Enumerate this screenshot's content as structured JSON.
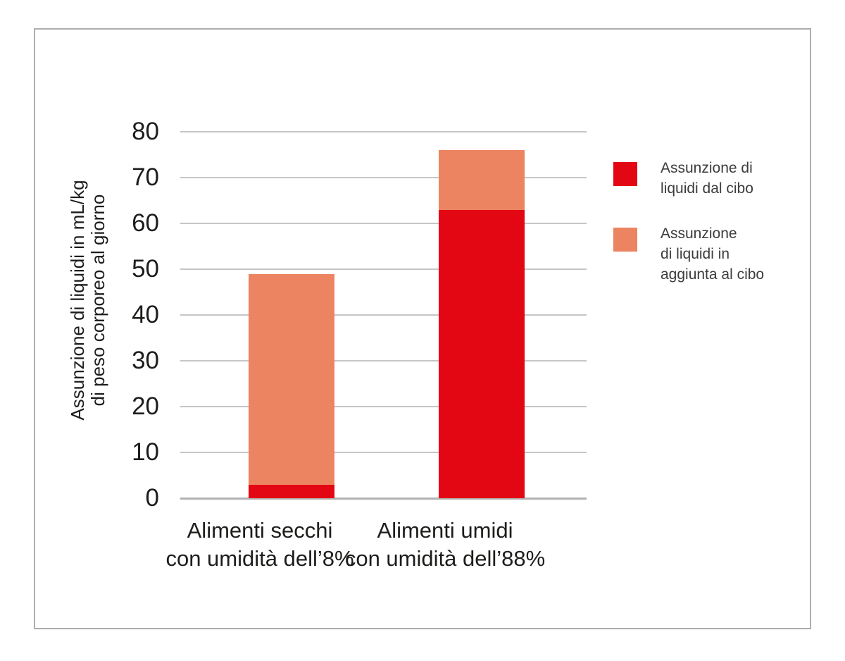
{
  "chart_data": {
    "type": "bar",
    "stacked": true,
    "ylabel_lines": [
      "Assunzione di liquidi in mL/kg",
      "di peso corporeo al giorno"
    ],
    "ylim": [
      0,
      80
    ],
    "ytick_step": 10,
    "yticks": [
      0,
      10,
      20,
      30,
      40,
      50,
      60,
      70,
      80
    ],
    "grid": "horizontal-only",
    "legend_position": "right",
    "categories": [
      {
        "label_lines": [
          "Alimenti secchi",
          "con umidità dell’8%"
        ]
      },
      {
        "label_lines": [
          "Alimenti umidi",
          "con umidità dell’88%"
        ]
      }
    ],
    "series": [
      {
        "name": "Assunzione di liquidi dal cibo",
        "color": "#e30613",
        "values": [
          3,
          63
        ]
      },
      {
        "name": "Assunzione di liquidi in aggiunta al cibo",
        "color": "#ec8462",
        "values": [
          46,
          13
        ]
      }
    ],
    "totals": [
      49,
      76
    ]
  },
  "legend": {
    "items": [
      {
        "color": "#e30613",
        "lines": [
          "Assunzione di",
          "liquidi dal cibo"
        ]
      },
      {
        "color": "#ec8462",
        "lines": [
          "Assunzione",
          "di liquidi in",
          "aggiunta al cibo"
        ]
      }
    ]
  },
  "colors": {
    "grid": "#c6c6c6",
    "baseline": "#b2b2b2",
    "frame_border": "#aeaeae",
    "text": "#1d1d1b",
    "red": "#e30613",
    "salmon": "#ec8462"
  }
}
